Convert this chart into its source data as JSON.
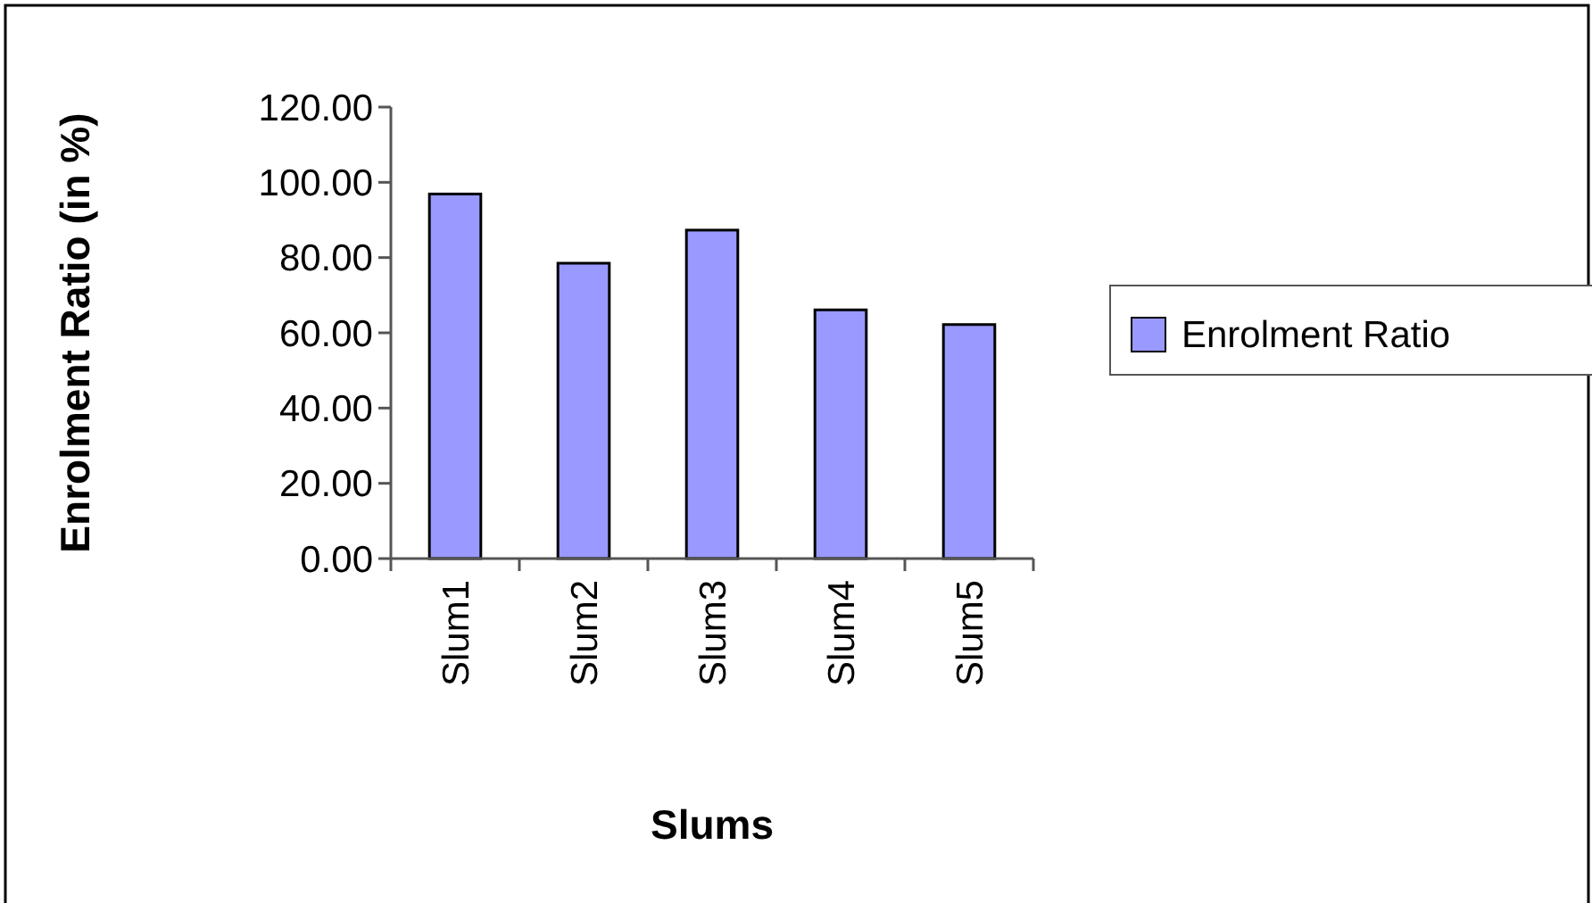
{
  "chart_data": {
    "type": "bar",
    "xlabel": "Slums",
    "ylabel": "Enrolment Ratio (in %)",
    "categories": [
      "Slum1",
      "Slum2",
      "Slum3",
      "Slum4",
      "Slum5"
    ],
    "series": [
      {
        "name": "Enrolment Ratio",
        "color": "#9999ff",
        "values": [
          96.9,
          78.5,
          87.3,
          66.1,
          62.2
        ]
      }
    ],
    "ylim": [
      0,
      120
    ],
    "yticks": [
      {
        "value": 0,
        "label": "0.00"
      },
      {
        "value": 20,
        "label": "20.00"
      },
      {
        "value": 40,
        "label": "40.00"
      },
      {
        "value": 60,
        "label": "60.00"
      },
      {
        "value": 80,
        "label": "80.00"
      },
      {
        "value": 100,
        "label": "100.00"
      },
      {
        "value": 120,
        "label": "120.00"
      }
    ],
    "grid": false,
    "legend": "right"
  }
}
